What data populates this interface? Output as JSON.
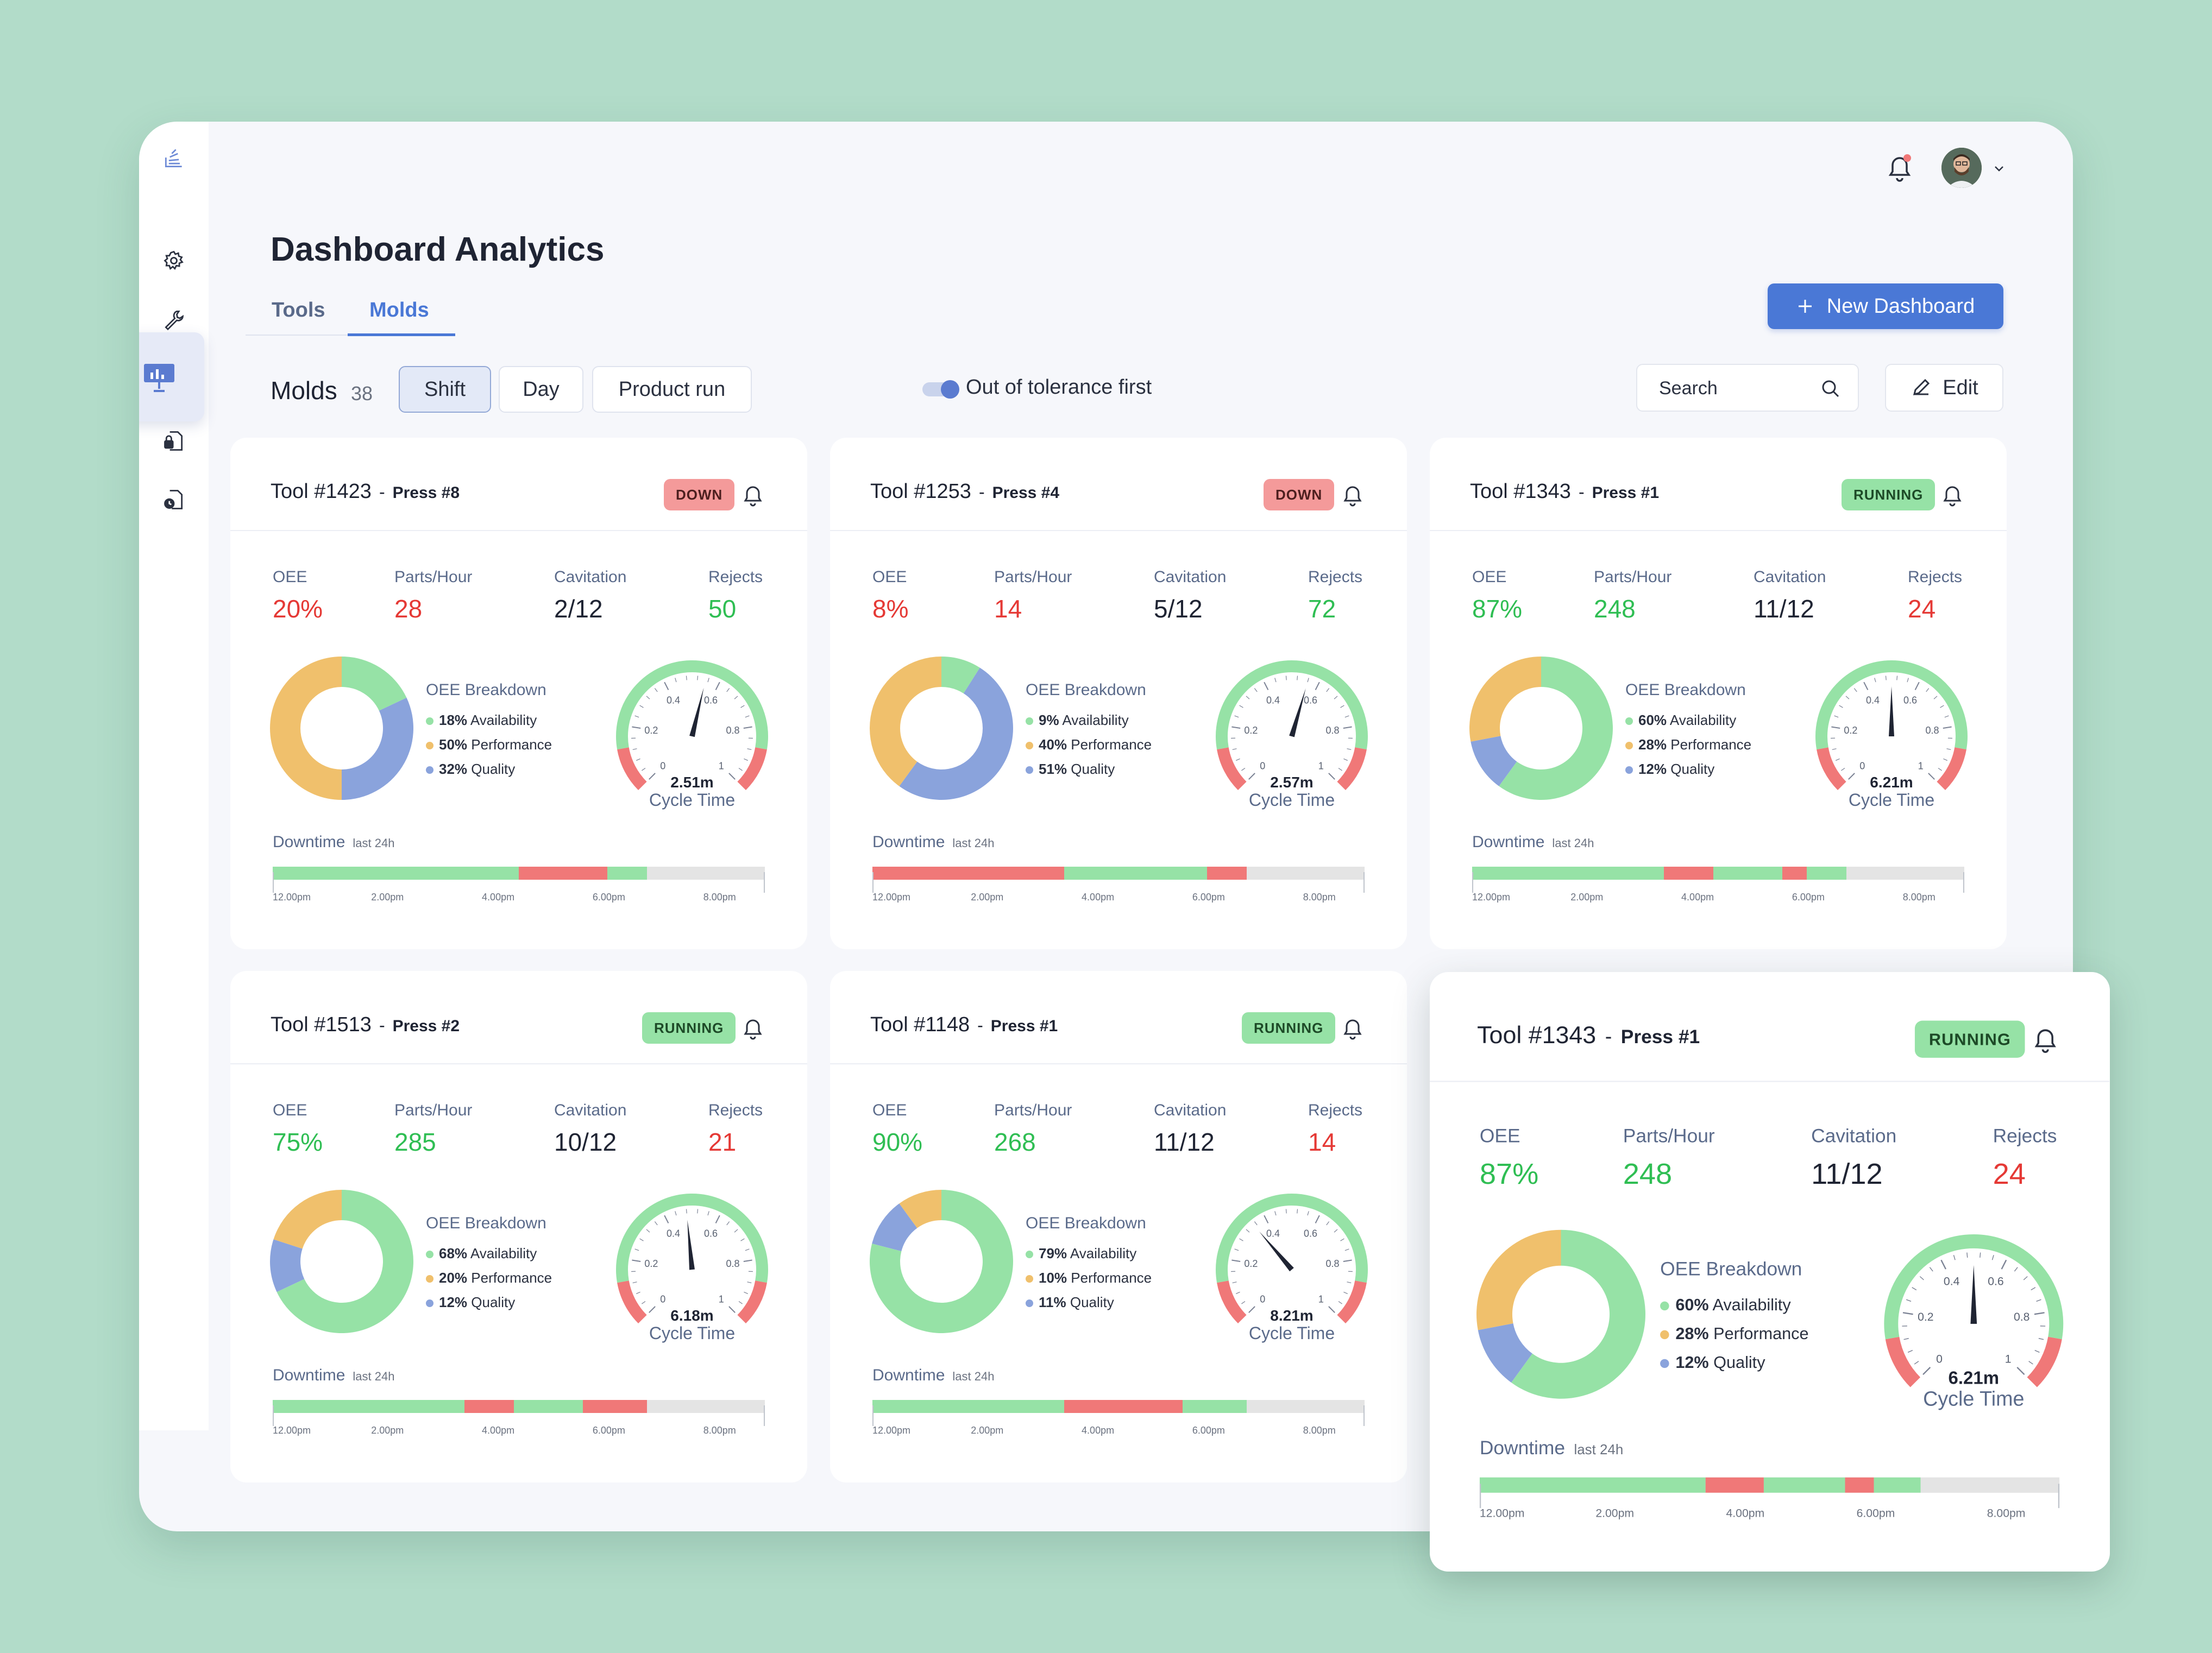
{
  "header": {
    "title": "Dashboard Analytics",
    "new_dashboard_label": "New Dashboard"
  },
  "tabs": [
    {
      "label": "Tools"
    },
    {
      "label": "Molds"
    }
  ],
  "toolbar": {
    "molds_label": "Molds",
    "molds_count": "38",
    "segments": [
      {
        "label": "Shift"
      },
      {
        "label": "Day"
      },
      {
        "label": "Product run"
      }
    ],
    "toggle_label": "Out of tolerance first",
    "search_placeholder": "Search",
    "edit_label": "Edit"
  },
  "colors": {
    "availability": "#96e2a6",
    "performance": "#f0c06c",
    "quality": "#8aa3dc",
    "down": "#f07878",
    "running": "#96e2a6",
    "accent": "#4a78d6"
  },
  "labels": {
    "oee": "OEE",
    "parts_hour": "Parts/Hour",
    "cavitation": "Cavitation",
    "rejects": "Rejects",
    "breakdown": "OEE Breakdown",
    "availability": "Availability",
    "performance": "Performance",
    "quality": "Quality",
    "cycle_time": "Cycle Time",
    "downtime": "Downtime",
    "last24": "last 24h"
  },
  "gauge_ticks": [
    "0",
    "0.2",
    "0.4",
    "0.6",
    "0.8",
    "1"
  ],
  "times": [
    "12.00pm",
    "2.00pm",
    "4.00pm",
    "6.00pm",
    "8.00pm"
  ],
  "cards": [
    {
      "tool": "Tool #1423",
      "press": "Press #8",
      "status": "DOWN",
      "oee": "20%",
      "oee_color": "red",
      "parts": "28",
      "parts_color": "red",
      "cavitation": "2/12",
      "rejects": "50",
      "rejects_color": "green",
      "availability": 18,
      "performance": 50,
      "quality": 32,
      "cycle_time": "2.51m",
      "cycle_value": 0.55,
      "downtime": [
        {
          "from": 0,
          "to": 0.5,
          "state": "up"
        },
        {
          "from": 0.5,
          "to": 0.68,
          "state": "down"
        },
        {
          "from": 0.68,
          "to": 0.76,
          "state": "up"
        }
      ]
    },
    {
      "tool": "Tool #1253",
      "press": "Press #4",
      "status": "DOWN",
      "oee": "8%",
      "oee_color": "red",
      "parts": "14",
      "parts_color": "red",
      "cavitation": "5/12",
      "rejects": "72",
      "rejects_color": "green",
      "availability": 9,
      "performance": 40,
      "quality": 51,
      "cycle_time": "2.57m",
      "cycle_value": 0.56,
      "downtime": [
        {
          "from": 0,
          "to": 0.39,
          "state": "down"
        },
        {
          "from": 0.39,
          "to": 0.68,
          "state": "up"
        },
        {
          "from": 0.68,
          "to": 0.76,
          "state": "down"
        }
      ]
    },
    {
      "tool": "Tool #1343",
      "press": "Press #1",
      "status": "RUNNING",
      "oee": "87%",
      "oee_color": "green",
      "parts": "248",
      "parts_color": "green",
      "cavitation": "11/12",
      "rejects": "24",
      "rejects_color": "red",
      "availability": 60,
      "performance": 28,
      "quality": 12,
      "cycle_time": "6.21m",
      "cycle_value": 0.5,
      "downtime": [
        {
          "from": 0,
          "to": 0.39,
          "state": "up"
        },
        {
          "from": 0.39,
          "to": 0.49,
          "state": "down"
        },
        {
          "from": 0.49,
          "to": 0.63,
          "state": "up"
        },
        {
          "from": 0.63,
          "to": 0.68,
          "state": "down"
        },
        {
          "from": 0.68,
          "to": 0.76,
          "state": "up"
        }
      ]
    },
    {
      "tool": "Tool #1513",
      "press": "Press #2",
      "status": "RUNNING",
      "oee": "75%",
      "oee_color": "green",
      "parts": "285",
      "parts_color": "green",
      "cavitation": "10/12",
      "rejects": "21",
      "rejects_color": "red",
      "availability": 68,
      "performance": 20,
      "quality": 12,
      "cycle_time": "6.18m",
      "cycle_value": 0.48,
      "downtime": [
        {
          "from": 0,
          "to": 0.39,
          "state": "up"
        },
        {
          "from": 0.39,
          "to": 0.49,
          "state": "down"
        },
        {
          "from": 0.49,
          "to": 0.63,
          "state": "up"
        },
        {
          "from": 0.63,
          "to": 0.76,
          "state": "down"
        }
      ]
    },
    {
      "tool": "Tool #1148",
      "press": "Press #1",
      "status": "RUNNING",
      "oee": "90%",
      "oee_color": "green",
      "parts": "268",
      "parts_color": "green",
      "cavitation": "11/12",
      "rejects": "14",
      "rejects_color": "red",
      "availability": 79,
      "performance": 10,
      "quality": 11,
      "cycle_time": "8.21m",
      "cycle_value": 0.35,
      "downtime": [
        {
          "from": 0,
          "to": 0.39,
          "state": "up"
        },
        {
          "from": 0.39,
          "to": 0.63,
          "state": "down"
        },
        {
          "from": 0.63,
          "to": 0.76,
          "state": "up"
        }
      ]
    },
    {
      "tool": "Tool #1343",
      "press": "Press #1",
      "status": "RUNNING",
      "oee": "87%",
      "oee_color": "green",
      "parts": "248",
      "parts_color": "green",
      "cavitation": "11/12",
      "rejects": "24",
      "rejects_color": "red",
      "availability": 60,
      "performance": 28,
      "quality": 12,
      "cycle_time": "6.21m",
      "cycle_value": 0.5,
      "downtime": [
        {
          "from": 0,
          "to": 0.39,
          "state": "up"
        },
        {
          "from": 0.39,
          "to": 0.49,
          "state": "down"
        },
        {
          "from": 0.49,
          "to": 0.63,
          "state": "up"
        },
        {
          "from": 0.63,
          "to": 0.68,
          "state": "down"
        },
        {
          "from": 0.68,
          "to": 0.76,
          "state": "up"
        }
      ]
    }
  ]
}
